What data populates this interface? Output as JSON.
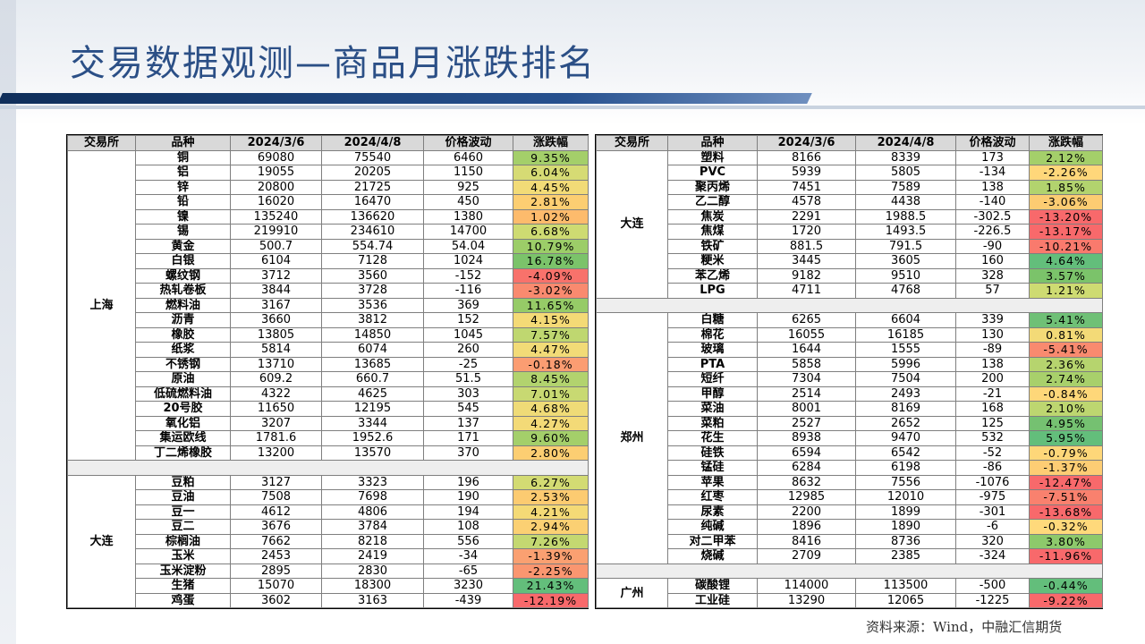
{
  "title": "交易数据观测—商品月涨跌排名",
  "source": "资料来源：Wind，中融汇信期货",
  "headers": [
    "交易所",
    "品种",
    "2024/3/6",
    "2024/4/8",
    "价格波动",
    "涨跌幅"
  ],
  "left_groups": [
    {
      "exchange": "上海",
      "rows": [
        {
          "name": "铜",
          "p1": "69080",
          "p2": "75540",
          "diff": "6460",
          "chg": "9.35%",
          "color": "#a4cf6a"
        },
        {
          "name": "铝",
          "p1": "19055",
          "p2": "20205",
          "diff": "1150",
          "chg": "6.04%",
          "color": "#d6db74"
        },
        {
          "name": "锌",
          "p1": "20800",
          "p2": "21725",
          "diff": "925",
          "chg": "4.45%",
          "color": "#f2db77"
        },
        {
          "name": "铅",
          "p1": "16020",
          "p2": "16470",
          "diff": "450",
          "chg": "2.81%",
          "color": "#fcce72"
        },
        {
          "name": "镍",
          "p1": "135240",
          "p2": "136620",
          "diff": "1380",
          "chg": "1.02%",
          "color": "#fdbb6c"
        },
        {
          "name": "锡",
          "p1": "219910",
          "p2": "234610",
          "diff": "14700",
          "chg": "6.68%",
          "color": "#cedb72"
        },
        {
          "name": "黄金",
          "p1": "500.7",
          "p2": "554.74",
          "diff": "54.04",
          "chg": "10.79%",
          "color": "#9ccd68"
        },
        {
          "name": "白银",
          "p1": "6104",
          "p2": "7128",
          "diff": "1024",
          "chg": "16.78%",
          "color": "#7bc36a"
        },
        {
          "name": "螺纹钢",
          "p1": "3712",
          "p2": "3560",
          "diff": "-152",
          "chg": "-4.09%",
          "color": "#f8726b"
        },
        {
          "name": "热轧卷板",
          "p1": "3844",
          "p2": "3728",
          "diff": "-116",
          "chg": "-3.02%",
          "color": "#f98a6f"
        },
        {
          "name": "燃料油",
          "p1": "3167",
          "p2": "3536",
          "diff": "369",
          "chg": "11.65%",
          "color": "#96cb67"
        },
        {
          "name": "沥青",
          "p1": "3660",
          "p2": "3812",
          "diff": "152",
          "chg": "4.15%",
          "color": "#f4da76"
        },
        {
          "name": "橡胶",
          "p1": "13805",
          "p2": "14850",
          "diff": "1045",
          "chg": "7.57%",
          "color": "#bfd770"
        },
        {
          "name": "纸浆",
          "p1": "5814",
          "p2": "6074",
          "diff": "260",
          "chg": "4.47%",
          "color": "#f2db77"
        },
        {
          "name": "不锈钢",
          "p1": "13710",
          "p2": "13685",
          "diff": "-25",
          "chg": "-0.18%",
          "color": "#fb9d72"
        },
        {
          "name": "原油",
          "p1": "609.2",
          "p2": "660.7",
          "diff": "51.5",
          "chg": "8.45%",
          "color": "#b2d36e"
        },
        {
          "name": "低硫燃料油",
          "p1": "4322",
          "p2": "4625",
          "diff": "303",
          "chg": "7.01%",
          "color": "#c8d972"
        },
        {
          "name": "20号胶",
          "p1": "11650",
          "p2": "12195",
          "diff": "545",
          "chg": "4.68%",
          "color": "#efdb77"
        },
        {
          "name": "氧化铝",
          "p1": "3207",
          "p2": "3344",
          "diff": "137",
          "chg": "4.27%",
          "color": "#f3da77"
        },
        {
          "name": "集运欧线",
          "p1": "1781.6",
          "p2": "1952.6",
          "diff": "171",
          "chg": "9.60%",
          "color": "#a4cf6a"
        },
        {
          "name": "丁二烯橡胶",
          "p1": "13200",
          "p2": "13570",
          "diff": "370",
          "chg": "2.80%",
          "color": "#fcce72"
        }
      ]
    },
    {
      "exchange": "大连",
      "rows": [
        {
          "name": "豆粕",
          "p1": "3127",
          "p2": "3323",
          "diff": "196",
          "chg": "6.27%",
          "color": "#d3db73"
        },
        {
          "name": "豆油",
          "p1": "7508",
          "p2": "7698",
          "diff": "190",
          "chg": "2.53%",
          "color": "#fccb71"
        },
        {
          "name": "豆一",
          "p1": "4612",
          "p2": "4806",
          "diff": "194",
          "chg": "4.21%",
          "color": "#f4da76"
        },
        {
          "name": "豆二",
          "p1": "3676",
          "p2": "3784",
          "diff": "108",
          "chg": "2.94%",
          "color": "#fbd073"
        },
        {
          "name": "棕榈油",
          "p1": "7662",
          "p2": "8218",
          "diff": "556",
          "chg": "7.26%",
          "color": "#c4d871"
        },
        {
          "name": "玉米",
          "p1": "2453",
          "p2": "2419",
          "diff": "-34",
          "chg": "-1.39%",
          "color": "#faa071"
        },
        {
          "name": "玉米淀粉",
          "p1": "2895",
          "p2": "2830",
          "diff": "-65",
          "chg": "-2.25%",
          "color": "#fa9670"
        },
        {
          "name": "生猪",
          "p1": "15070",
          "p2": "18300",
          "diff": "3230",
          "chg": "21.43%",
          "color": "#63be7b"
        },
        {
          "name": "鸡蛋",
          "p1": "3602",
          "p2": "3163",
          "diff": "-439",
          "chg": "-12.19%",
          "color": "#f8696b"
        }
      ]
    }
  ],
  "right_groups": [
    {
      "exchange": "大连",
      "rows": [
        {
          "name": "塑料",
          "p1": "8166",
          "p2": "8339",
          "diff": "173",
          "chg": "2.12%",
          "color": "#a4cf6a"
        },
        {
          "name": "PVC",
          "p1": "5939",
          "p2": "5805",
          "diff": "-134",
          "chg": "-2.26%",
          "color": "#ffd77a"
        },
        {
          "name": "聚丙烯",
          "p1": "7451",
          "p2": "7589",
          "diff": "138",
          "chg": "1.85%",
          "color": "#b2d36e"
        },
        {
          "name": "乙二醇",
          "p1": "4578",
          "p2": "4438",
          "diff": "-140",
          "chg": "-3.06%",
          "color": "#fccc72"
        },
        {
          "name": "焦炭",
          "p1": "2291",
          "p2": "1988.5",
          "diff": "-302.5",
          "chg": "-13.20%",
          "color": "#f8696b"
        },
        {
          "name": "焦煤",
          "p1": "1720",
          "p2": "1493.5",
          "diff": "-226.5",
          "chg": "-13.17%",
          "color": "#f8696b"
        },
        {
          "name": "铁矿",
          "p1": "881.5",
          "p2": "791.5",
          "diff": "-90",
          "chg": "-10.21%",
          "color": "#f97a6d"
        },
        {
          "name": "粳米",
          "p1": "3445",
          "p2": "3605",
          "diff": "160",
          "chg": "4.64%",
          "color": "#63be7b"
        },
        {
          "name": "苯乙烯",
          "p1": "9182",
          "p2": "9510",
          "diff": "328",
          "chg": "3.57%",
          "color": "#7bc36a"
        },
        {
          "name": "LPG",
          "p1": "4711",
          "p2": "4768",
          "diff": "57",
          "chg": "1.21%",
          "color": "#cedb72"
        }
      ]
    },
    {
      "exchange": "郑州",
      "rows": [
        {
          "name": "白糖",
          "p1": "6265",
          "p2": "6604",
          "diff": "339",
          "chg": "5.41%",
          "color": "#6fc076"
        },
        {
          "name": "棉花",
          "p1": "16055",
          "p2": "16185",
          "diff": "130",
          "chg": "0.81%",
          "color": "#f3da77"
        },
        {
          "name": "玻璃",
          "p1": "1644",
          "p2": "1555",
          "diff": "-89",
          "chg": "-5.41%",
          "color": "#f98a6f"
        },
        {
          "name": "PTA",
          "p1": "5858",
          "p2": "5996",
          "diff": "138",
          "chg": "2.36%",
          "color": "#b6d46e"
        },
        {
          "name": "短纤",
          "p1": "7304",
          "p2": "7504",
          "diff": "200",
          "chg": "2.74%",
          "color": "#a8d06b"
        },
        {
          "name": "甲醇",
          "p1": "2514",
          "p2": "2493",
          "diff": "-21",
          "chg": "-0.84%",
          "color": "#fed779"
        },
        {
          "name": "菜油",
          "p1": "8001",
          "p2": "8169",
          "diff": "168",
          "chg": "2.10%",
          "color": "#bdd670"
        },
        {
          "name": "菜粕",
          "p1": "2527",
          "p2": "2652",
          "diff": "125",
          "chg": "4.95%",
          "color": "#75c171"
        },
        {
          "name": "花生",
          "p1": "8938",
          "p2": "9470",
          "diff": "532",
          "chg": "5.95%",
          "color": "#63be7b"
        },
        {
          "name": "硅铁",
          "p1": "6594",
          "p2": "6542",
          "diff": "-52",
          "chg": "-0.79%",
          "color": "#fed779"
        },
        {
          "name": "锰硅",
          "p1": "6284",
          "p2": "6198",
          "diff": "-86",
          "chg": "-1.37%",
          "color": "#fdcd74"
        },
        {
          "name": "苹果",
          "p1": "8632",
          "p2": "7556",
          "diff": "-1076",
          "chg": "-12.47%",
          "color": "#f8696b"
        },
        {
          "name": "红枣",
          "p1": "12985",
          "p2": "12010",
          "diff": "-975",
          "chg": "-7.51%",
          "color": "#f9816e"
        },
        {
          "name": "尿素",
          "p1": "2200",
          "p2": "1899",
          "diff": "-301",
          "chg": "-13.68%",
          "color": "#f8696b"
        },
        {
          "name": "纯碱",
          "p1": "1896",
          "p2": "1890",
          "diff": "-6",
          "chg": "-0.32%",
          "color": "#ffd97b"
        },
        {
          "name": "对二甲苯",
          "p1": "8416",
          "p2": "8736",
          "diff": "320",
          "chg": "3.80%",
          "color": "#8dc96b"
        },
        {
          "name": "烧碱",
          "p1": "2709",
          "p2": "2385",
          "diff": "-324",
          "chg": "-11.96%",
          "color": "#f8696b"
        }
      ]
    },
    {
      "exchange": "广州",
      "rows": [
        {
          "name": "碳酸锂",
          "p1": "114000",
          "p2": "113500",
          "diff": "-500",
          "chg": "-0.44%",
          "color": "#63be7b"
        },
        {
          "name": "工业硅",
          "p1": "13290",
          "p2": "12065",
          "diff": "-1225",
          "chg": "-9.22%",
          "color": "#f8696b"
        }
      ]
    }
  ]
}
